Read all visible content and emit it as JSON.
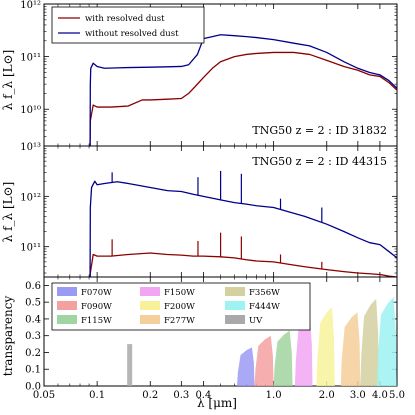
{
  "chart_data": [
    {
      "panel": "top",
      "type": "line",
      "annotation": "TNG50 z = 2 :  ID 31832",
      "ylabel": "λ f_λ [L⊙]",
      "yscale": "log",
      "ylim": [
        2000000000.0,
        1000000000000.0
      ],
      "yticks": [
        {
          "v": 10000000000.0,
          "label": "10¹⁰"
        },
        {
          "v": 100000000000.0,
          "label": "10¹¹"
        },
        {
          "v": 1000000000000.0,
          "label": "10¹²"
        }
      ],
      "legend": {
        "placement": "top-left",
        "entries": [
          {
            "label": "with resolved dust",
            "color": "#8b0000"
          },
          {
            "label": "without resolved dust",
            "color": "#00008b"
          }
        ]
      },
      "series": [
        {
          "name": "without resolved dust",
          "color": "#00008b",
          "points": [
            [
              0.0912,
              2000000000.0
            ],
            [
              0.0915,
              30000000000.0
            ],
            [
              0.092,
              60000000000.0
            ],
            [
              0.095,
              75000000000.0
            ],
            [
              0.1,
              65000000000.0
            ],
            [
              0.11,
              60000000000.0
            ],
            [
              0.13,
              61000000000.0
            ],
            [
              0.15,
              62000000000.0
            ],
            [
              0.2,
              63000000000.0
            ],
            [
              0.25,
              64000000000.0
            ],
            [
              0.3,
              65000000000.0
            ],
            [
              0.33,
              70000000000.0
            ],
            [
              0.37,
              110000000000.0
            ],
            [
              0.4,
              220000000000.0
            ],
            [
              0.45,
              240000000000.0
            ],
            [
              0.5,
              260000000000.0
            ],
            [
              0.6,
              250000000000.0
            ],
            [
              0.7,
              240000000000.0
            ],
            [
              0.8,
              230000000000.0
            ],
            [
              1.0,
              210000000000.0
            ],
            [
              1.3,
              180000000000.0
            ],
            [
              1.6,
              160000000000.0
            ],
            [
              2.0,
              120000000000.0
            ],
            [
              2.5,
              80000000000.0
            ],
            [
              3.0,
              60000000000.0
            ],
            [
              3.5,
              50000000000.0
            ],
            [
              4.0,
              45000000000.0
            ],
            [
              4.5,
              35000000000.0
            ],
            [
              5.0,
              25000000000.0
            ]
          ]
        },
        {
          "name": "with resolved dust",
          "color": "#8b0000",
          "points": [
            [
              0.0912,
              2000000000.0
            ],
            [
              0.0915,
              6000000000.0
            ],
            [
              0.095,
              12000000000.0
            ],
            [
              0.1,
              11000000000.0
            ],
            [
              0.12,
              11000000000.0
            ],
            [
              0.15,
              11500000000.0
            ],
            [
              0.18,
              15000000000.0
            ],
            [
              0.2,
              15000000000.0
            ],
            [
              0.25,
              15500000000.0
            ],
            [
              0.3,
              16000000000.0
            ],
            [
              0.33,
              20000000000.0
            ],
            [
              0.37,
              30000000000.0
            ],
            [
              0.4,
              40000000000.0
            ],
            [
              0.45,
              60000000000.0
            ],
            [
              0.5,
              80000000000.0
            ],
            [
              0.6,
              100000000000.0
            ],
            [
              0.7,
              110000000000.0
            ],
            [
              0.8,
              115000000000.0
            ],
            [
              1.0,
              120000000000.0
            ],
            [
              1.3,
              120000000000.0
            ],
            [
              1.6,
              110000000000.0
            ],
            [
              2.0,
              85000000000.0
            ],
            [
              2.5,
              65000000000.0
            ],
            [
              3.0,
              55000000000.0
            ],
            [
              3.5,
              45000000000.0
            ],
            [
              4.0,
              42000000000.0
            ],
            [
              4.5,
              32000000000.0
            ],
            [
              5.0,
              23000000000.0
            ]
          ]
        }
      ]
    },
    {
      "panel": "middle",
      "type": "line",
      "annotation": "TNG50 z = 2 :  ID 44315",
      "ylabel": "λ f_λ [L⊙]",
      "yscale": "log",
      "ylim": [
        25000000000.0,
        10000000000000.0
      ],
      "yticks": [
        {
          "v": 100000000000.0,
          "label": "10¹¹"
        },
        {
          "v": 1000000000000.0,
          "label": "10¹²"
        },
        {
          "v": 10000000000000.0,
          "label": "10¹³"
        }
      ],
      "series": [
        {
          "name": "without resolved dust",
          "color": "#00008b",
          "points": [
            [
              0.0912,
              25000000000.0
            ],
            [
              0.0915,
              600000000000.0
            ],
            [
              0.093,
              1500000000000.0
            ],
            [
              0.097,
              2000000000000.0
            ],
            [
              0.1,
              1700000000000.0
            ],
            [
              0.11,
              1800000000000.0
            ],
            [
              0.13,
              1950000000000.0
            ],
            [
              0.15,
              1800000000000.0
            ],
            [
              0.2,
              1500000000000.0
            ],
            [
              0.25,
              1300000000000.0
            ],
            [
              0.3,
              1250000000000.0
            ],
            [
              0.35,
              1100000000000.0
            ],
            [
              0.4,
              1000000000000.0
            ],
            [
              0.5,
              850000000000.0
            ],
            [
              0.6,
              750000000000.0
            ],
            [
              0.7,
              700000000000.0
            ],
            [
              0.8,
              650000000000.0
            ],
            [
              1.0,
              600000000000.0
            ],
            [
              1.2,
              500000000000.0
            ],
            [
              1.5,
              400000000000.0
            ],
            [
              2.0,
              280000000000.0
            ],
            [
              2.5,
              200000000000.0
            ],
            [
              3.0,
              150000000000.0
            ],
            [
              3.5,
              120000000000.0
            ],
            [
              4.0,
              110000000000.0
            ],
            [
              4.5,
              80000000000.0
            ],
            [
              5.0,
              60000000000.0
            ]
          ]
        },
        {
          "name": "with resolved dust",
          "color": "#8b0000",
          "points": [
            [
              0.0912,
              25000000000.0
            ],
            [
              0.0915,
              30000000000.0
            ],
            [
              0.095,
              70000000000.0
            ],
            [
              0.1,
              65000000000.0
            ],
            [
              0.12,
              65000000000.0
            ],
            [
              0.15,
              70000000000.0
            ],
            [
              0.2,
              75000000000.0
            ],
            [
              0.25,
              70000000000.0
            ],
            [
              0.3,
              68000000000.0
            ],
            [
              0.35,
              65000000000.0
            ],
            [
              0.4,
              65000000000.0
            ],
            [
              0.5,
              63000000000.0
            ],
            [
              0.6,
              60000000000.0
            ],
            [
              0.7,
              55000000000.0
            ],
            [
              0.8,
              52000000000.0
            ],
            [
              1.0,
              50000000000.0
            ],
            [
              1.2,
              45000000000.0
            ],
            [
              1.5,
              40000000000.0
            ],
            [
              2.0,
              35000000000.0
            ],
            [
              2.5,
              32000000000.0
            ],
            [
              3.0,
              30000000000.0
            ],
            [
              3.5,
              29000000000.0
            ],
            [
              4.0,
              28000000000.0
            ],
            [
              4.5,
              26000000000.0
            ],
            [
              5.0,
              25000000000.0
            ]
          ]
        }
      ],
      "emission_lines": [
        {
          "x": 0.1216,
          "blue": 3000000000000.0,
          "red": 140000000000.0
        },
        {
          "x": 0.3727,
          "blue": 2400000000000.0,
          "red": 130000000000.0
        },
        {
          "x": 0.5007,
          "blue": 3200000000000.0,
          "red": 190000000000.0
        },
        {
          "x": 0.6563,
          "blue": 2800000000000.0,
          "red": 160000000000.0
        },
        {
          "x": 1.094,
          "blue": 900000000000.0,
          "red": 70000000000.0
        },
        {
          "x": 1.875,
          "blue": 600000000000.0,
          "red": 50000000000.0
        }
      ]
    },
    {
      "panel": "bottom",
      "type": "area",
      "ylabel": "transparency",
      "xlabel": "λ [μm]",
      "xscale": "log",
      "xlim": [
        0.05,
        5.0
      ],
      "xticks": [
        {
          "v": 0.05,
          "label": "0.05"
        },
        {
          "v": 0.1,
          "label": "0.1"
        },
        {
          "v": 0.2,
          "label": "0.2"
        },
        {
          "v": 0.3,
          "label": "0.3"
        },
        {
          "v": 0.4,
          "label": "0.4"
        },
        {
          "v": 1.0,
          "label": "1.0"
        },
        {
          "v": 2.0,
          "label": "2.0"
        },
        {
          "v": 3.0,
          "label": "3.0"
        },
        {
          "v": 4.0,
          "label": "4.0"
        },
        {
          "v": 5.0,
          "label": "5.0"
        }
      ],
      "ylim": [
        0,
        0.65
      ],
      "yticks": [
        {
          "v": 0.0,
          "label": "0.0"
        },
        {
          "v": 0.1,
          "label": "0.1"
        },
        {
          "v": 0.2,
          "label": "0.2"
        },
        {
          "v": 0.3,
          "label": "0.3"
        },
        {
          "v": 0.4,
          "label": "0.4"
        },
        {
          "v": 0.5,
          "label": "0.5"
        },
        {
          "v": 0.6,
          "label": "0.6"
        }
      ],
      "legend": {
        "placement": "top",
        "columns": 3
      },
      "filters": [
        {
          "name": "F070W",
          "color": "#9a9af5",
          "lo": 0.62,
          "hi": 0.78,
          "peak": 0.23
        },
        {
          "name": "F090W",
          "color": "#f5a0a0",
          "lo": 0.78,
          "hi": 1.0,
          "peak": 0.3
        },
        {
          "name": "F115W",
          "color": "#a0d4a0",
          "lo": 1.0,
          "hi": 1.28,
          "peak": 0.33
        },
        {
          "name": "F150W",
          "color": "#f2a6f2",
          "lo": 1.32,
          "hi": 1.66,
          "peak": 0.42
        },
        {
          "name": "F200W",
          "color": "#f7f29a",
          "lo": 1.75,
          "hi": 2.22,
          "peak": 0.47
        },
        {
          "name": "F277W",
          "color": "#f5cf9a",
          "lo": 2.4,
          "hi": 3.1,
          "peak": 0.44
        },
        {
          "name": "F356W",
          "color": "#d4d0a0",
          "lo": 3.1,
          "hi": 3.95,
          "peak": 0.52
        },
        {
          "name": "F444W",
          "color": "#9ef2f2",
          "lo": 3.85,
          "hi": 4.98,
          "peak": 0.53
        },
        {
          "name": "UV",
          "color": "#a9a9a9",
          "lo": 0.148,
          "hi": 0.158,
          "peak": 0.25
        }
      ]
    }
  ]
}
